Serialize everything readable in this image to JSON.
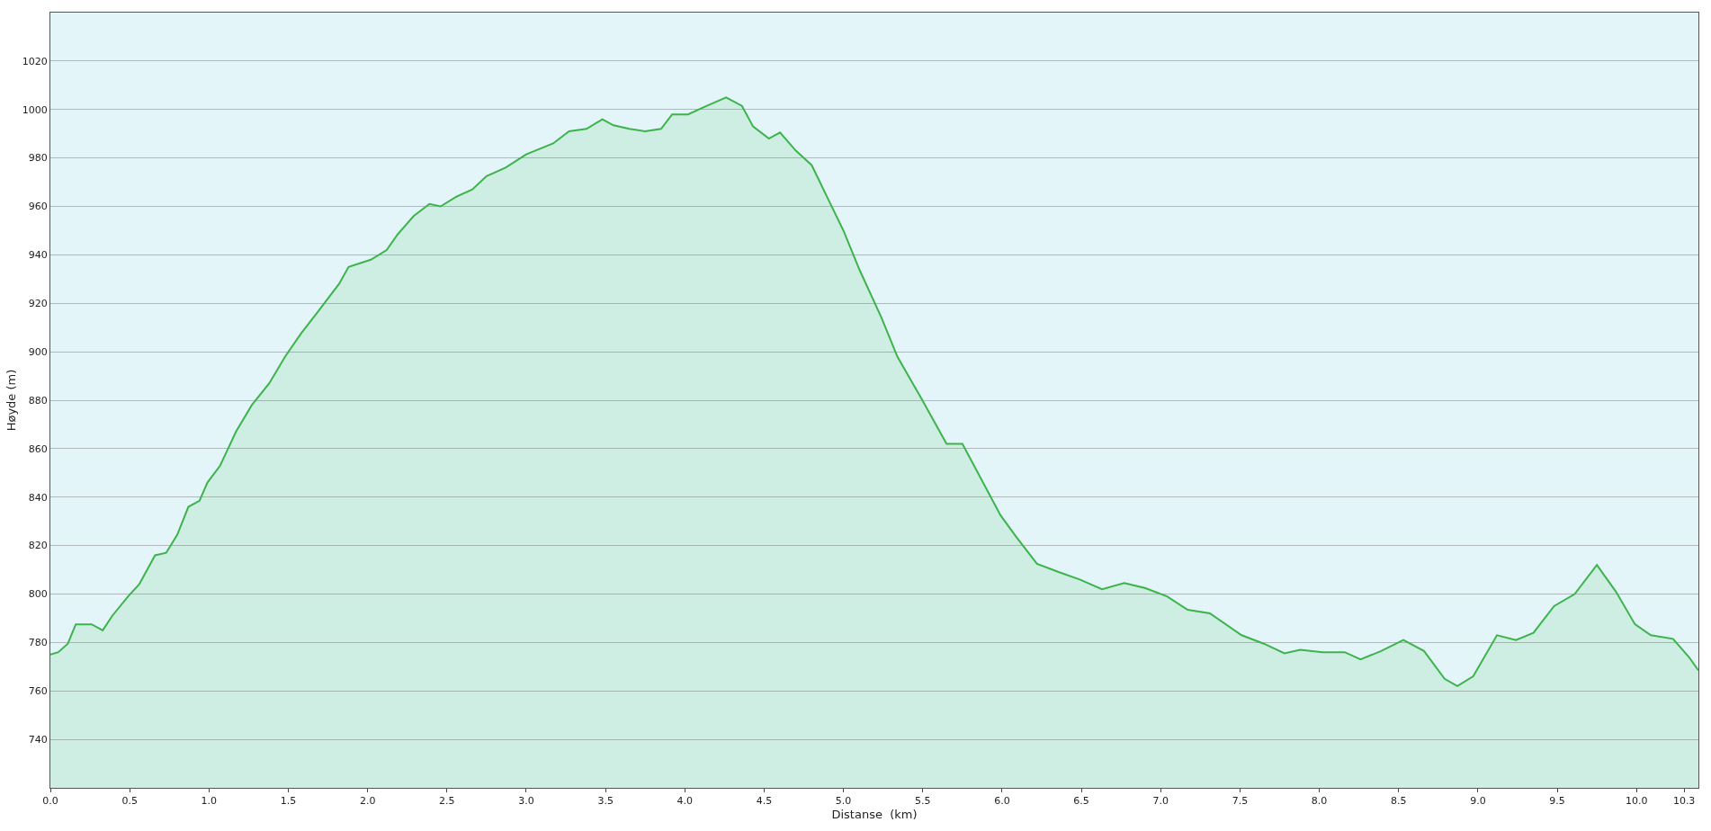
{
  "chart_data": {
    "type": "area",
    "xlabel": "Distanse  (km)",
    "ylabel": "Høyde (m)",
    "x": [
      0,
      0.05,
      0.11,
      0.16,
      0.26,
      0.33,
      0.39,
      0.49,
      0.56,
      0.66,
      0.73,
      0.8,
      0.87,
      0.94,
      0.99,
      1.07,
      1.17,
      1.27,
      1.38,
      1.48,
      1.58,
      1.68,
      1.82,
      1.88,
      2.02,
      2.12,
      2.19,
      2.29,
      2.39,
      2.46,
      2.56,
      2.66,
      2.75,
      2.87,
      3.0,
      3.17,
      3.27,
      3.38,
      3.48,
      3.55,
      3.65,
      3.75,
      3.85,
      3.92,
      4.02,
      4.12,
      4.26,
      4.36,
      4.43,
      4.53,
      4.6,
      4.7,
      4.8,
      4.9,
      5.0,
      5.1,
      5.24,
      5.34,
      5.48,
      5.65,
      5.75,
      5.88,
      5.99,
      6.09,
      6.22,
      6.36,
      6.49,
      6.63,
      6.77,
      6.9,
      7.04,
      7.17,
      7.31,
      7.51,
      7.65,
      7.78,
      7.88,
      8.02,
      8.16,
      8.26,
      8.39,
      8.53,
      8.66,
      8.79,
      8.87,
      8.97,
      9.12,
      9.24,
      9.35,
      9.48,
      9.61,
      9.75,
      9.87,
      9.99,
      10.09,
      10.23,
      10.33,
      10.39
    ],
    "series": [
      {
        "color": "#3cb44b",
        "values": [
          775,
          776,
          779.5,
          787.5,
          787.5,
          785,
          791,
          799,
          804,
          816,
          817,
          824.5,
          836,
          838.5,
          846,
          853,
          867,
          878,
          887,
          898,
          907.5,
          916,
          928,
          935,
          938,
          942,
          948.5,
          956,
          961,
          960,
          964,
          967,
          972.5,
          976,
          981.5,
          986,
          991,
          992,
          996,
          993.5,
          992,
          991,
          992,
          998,
          998,
          1001,
          1005,
          1001.5,
          993,
          988,
          990.5,
          983,
          977,
          963.5,
          950,
          934,
          914,
          898,
          882,
          862,
          862,
          846,
          832.5,
          823.5,
          812.5,
          809,
          806,
          802,
          804.5,
          802.5,
          799,
          793.5,
          792,
          783,
          779.5,
          775.5,
          777,
          776,
          776,
          773,
          776.5,
          781,
          776.5,
          765,
          762,
          766,
          783,
          781,
          784,
          795,
          800,
          812,
          801,
          787.5,
          783,
          781.5,
          774,
          768.5
        ]
      }
    ],
    "xlim": [
      0,
      10.39
    ],
    "ylim": [
      720,
      1040
    ],
    "xticks": [
      {
        "value": 0,
        "label": "0.0"
      },
      0.5,
      {
        "value": 1,
        "label": "1.0"
      },
      1.5,
      {
        "value": 2,
        "label": "2.0"
      },
      2.5,
      {
        "value": 3,
        "label": "3.0"
      },
      3.5,
      {
        "value": 4,
        "label": "4.0"
      },
      4.5,
      {
        "value": 5,
        "label": "5.0"
      },
      5.5,
      {
        "value": 6,
        "label": "6.0"
      },
      6.5,
      {
        "value": 7,
        "label": "7.0"
      },
      7.5,
      {
        "value": 8,
        "label": "8.0"
      },
      8.5,
      {
        "value": 9,
        "label": "9.0"
      },
      9.5,
      {
        "value": 10,
        "label": "10.0"
      },
      10.3
    ],
    "yticks": [
      740,
      760,
      780,
      800,
      820,
      840,
      860,
      880,
      900,
      920,
      940,
      960,
      980,
      1000,
      1020
    ],
    "grid": "y",
    "marker": "none",
    "line_style": "solid"
  }
}
